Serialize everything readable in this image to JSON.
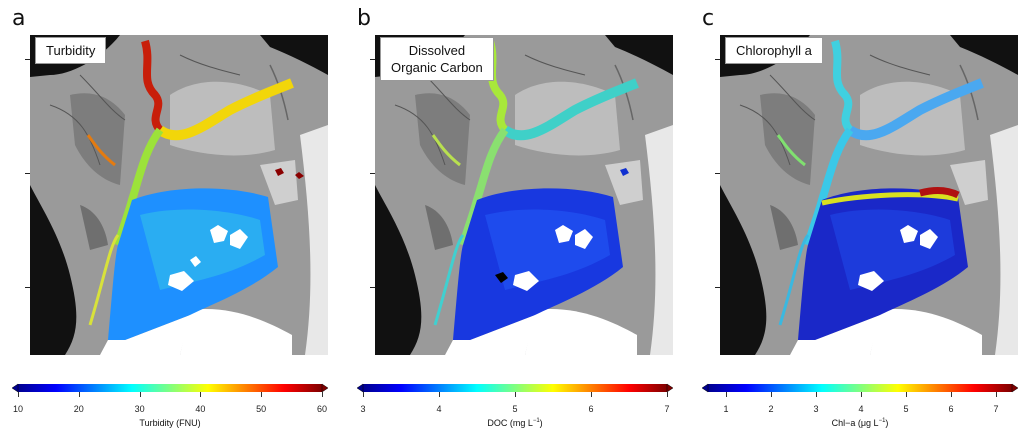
{
  "panels": [
    {
      "letter": "a",
      "title": "Turbidity",
      "colorbar": {
        "ticks": [
          "10",
          "20",
          "30",
          "40",
          "50",
          "60"
        ],
        "label": "Turbidity  (FNU)"
      }
    },
    {
      "letter": "b",
      "title": "Dissolved\nOrganic Carbon",
      "colorbar": {
        "ticks": [
          "3",
          "4",
          "5",
          "6",
          "7"
        ],
        "label_main": "DOC  (mg L",
        "label_sup": "−1",
        "label_end": ")"
      }
    },
    {
      "letter": "c",
      "title": "Chlorophyll a",
      "colorbar": {
        "ticks": [
          "1",
          "2",
          "3",
          "4",
          "5",
          "6",
          "7"
        ],
        "label_main": "Chl−a  (μg L",
        "label_sup": "−1",
        "label_end": ")"
      }
    }
  ],
  "colors": {
    "jet_low": "#00008f",
    "jet_high": "#7f0000",
    "land_dark": "#111111",
    "land_gray": "#9a9a9a"
  }
}
